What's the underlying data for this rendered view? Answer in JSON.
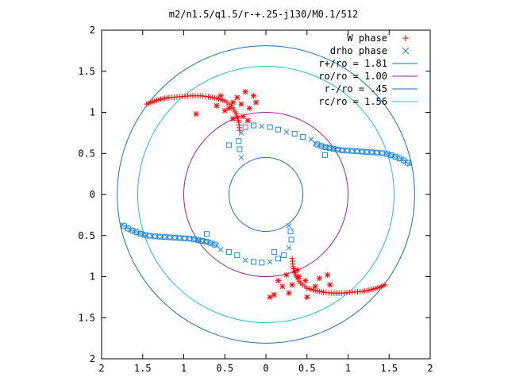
{
  "chart_data": {
    "type": "scatter",
    "title": "m2/n1.5/q1.5/r-+.25-j130/M0.1/512",
    "xlabel": "",
    "ylabel": "",
    "xlim": [
      -2,
      2
    ],
    "ylim": [
      -2,
      2
    ],
    "x_ticks": [
      "2",
      "1.5",
      "1",
      "0.5",
      "0",
      "0.5",
      "1",
      "1.5",
      "2"
    ],
    "y_ticks": [
      "2",
      "1.5",
      "1",
      "0.5",
      "0",
      "0.5",
      "1",
      "1.5",
      "2"
    ],
    "grid": false,
    "legend_position": "top-right",
    "circles": [
      {
        "label": "r+/ro = 1.81",
        "radius": 1.81,
        "color": "#1a6fb5"
      },
      {
        "label": "ro/ro = 1.00",
        "radius": 1.0,
        "color": "#a020a0"
      },
      {
        "label": "r-/ro = .45",
        "radius": 0.45,
        "color": "#1a6fb5"
      },
      {
        "label": "rc/ro = 1.56",
        "radius": 1.56,
        "color": "#20c0c0"
      }
    ],
    "series": [
      {
        "name": "W phase",
        "marker": "plus",
        "color": "#ff0000"
      },
      {
        "name": "drho phase",
        "marker": "cross",
        "color": "#1e88e5"
      }
    ],
    "w_phase_arms": [
      {
        "dense": [
          [
            -1.45,
            1.1
          ],
          [
            -1.38,
            1.13
          ],
          [
            -1.28,
            1.16
          ],
          [
            -1.18,
            1.18
          ],
          [
            -1.05,
            1.19
          ],
          [
            -0.92,
            1.2
          ],
          [
            -0.8,
            1.2
          ],
          [
            -0.7,
            1.19
          ],
          [
            -0.6,
            1.17
          ],
          [
            -0.5,
            1.14
          ],
          [
            -0.42,
            1.08
          ],
          [
            -0.36,
            0.98
          ],
          [
            -0.33,
            0.88
          ],
          [
            -0.32,
            0.78
          ]
        ],
        "scatter": [
          [
            -0.6,
            1.08
          ],
          [
            -0.5,
            1.02
          ],
          [
            -0.45,
            1.05
          ],
          [
            -0.4,
            1.12
          ],
          [
            -0.35,
            1.18
          ],
          [
            -0.25,
            1.25
          ],
          [
            -0.15,
            1.2
          ],
          [
            -0.12,
            1.12
          ],
          [
            -0.2,
            1.05
          ],
          [
            -0.28,
            0.95
          ],
          [
            -0.22,
            0.9
          ],
          [
            -0.4,
            0.92
          ],
          [
            -0.3,
            1.1
          ],
          [
            -0.55,
            1.2
          ],
          [
            -0.85,
            0.98
          ]
        ]
      },
      {
        "dense": [
          [
            1.45,
            -1.1
          ],
          [
            1.38,
            -1.13
          ],
          [
            1.28,
            -1.16
          ],
          [
            1.18,
            -1.18
          ],
          [
            1.05,
            -1.19
          ],
          [
            0.92,
            -1.2
          ],
          [
            0.8,
            -1.2
          ],
          [
            0.7,
            -1.19
          ],
          [
            0.6,
            -1.17
          ],
          [
            0.5,
            -1.14
          ],
          [
            0.42,
            -1.08
          ],
          [
            0.36,
            -0.98
          ],
          [
            0.33,
            -0.88
          ],
          [
            0.32,
            -0.78
          ]
        ],
        "scatter": [
          [
            0.75,
            -0.98
          ],
          [
            0.78,
            -1.1
          ],
          [
            0.6,
            -1.12
          ],
          [
            0.48,
            -1.05
          ],
          [
            0.4,
            -1.0
          ],
          [
            0.32,
            -1.1
          ],
          [
            0.2,
            -1.12
          ],
          [
            0.1,
            -1.22
          ],
          [
            0.05,
            -1.25
          ],
          [
            0.15,
            -1.05
          ],
          [
            0.28,
            -1.2
          ],
          [
            0.5,
            -1.25
          ],
          [
            0.65,
            -1.02
          ],
          [
            0.38,
            -0.92
          ],
          [
            0.25,
            -0.98
          ]
        ]
      }
    ],
    "drho_phase_arms": [
      {
        "dense": [
          [
            1.75,
            0.37
          ],
          [
            1.65,
            0.43
          ],
          [
            1.55,
            0.47
          ],
          [
            1.45,
            0.5
          ],
          [
            1.35,
            0.51
          ],
          [
            1.2,
            0.52
          ],
          [
            1.05,
            0.53
          ],
          [
            0.9,
            0.54
          ],
          [
            0.8,
            0.56
          ],
          [
            0.7,
            0.58
          ],
          [
            0.6,
            0.62
          ]
        ],
        "scatter": [
          [
            0.55,
            0.67
          ],
          [
            0.45,
            0.7
          ],
          [
            0.35,
            0.74
          ],
          [
            0.25,
            0.76
          ],
          [
            0.15,
            0.79
          ],
          [
            0.05,
            0.82
          ],
          [
            -0.05,
            0.83
          ],
          [
            -0.15,
            0.84
          ],
          [
            -0.25,
            0.82
          ],
          [
            -0.3,
            0.75
          ],
          [
            -0.33,
            0.65
          ],
          [
            -0.32,
            0.55
          ],
          [
            -0.3,
            0.45
          ],
          [
            -0.45,
            0.6
          ],
          [
            0.72,
            0.48
          ]
        ]
      },
      {
        "dense": [
          [
            -1.75,
            -0.37
          ],
          [
            -1.65,
            -0.43
          ],
          [
            -1.55,
            -0.47
          ],
          [
            -1.45,
            -0.5
          ],
          [
            -1.35,
            -0.51
          ],
          [
            -1.2,
            -0.52
          ],
          [
            -1.05,
            -0.53
          ],
          [
            -0.9,
            -0.54
          ],
          [
            -0.8,
            -0.56
          ],
          [
            -0.7,
            -0.58
          ],
          [
            -0.6,
            -0.62
          ]
        ],
        "scatter": [
          [
            -0.55,
            -0.67
          ],
          [
            -0.45,
            -0.7
          ],
          [
            -0.35,
            -0.74
          ],
          [
            -0.25,
            -0.8
          ],
          [
            -0.15,
            -0.82
          ],
          [
            -0.05,
            -0.83
          ],
          [
            0.05,
            -0.82
          ],
          [
            0.15,
            -0.78
          ],
          [
            0.22,
            -0.74
          ],
          [
            0.28,
            -0.65
          ],
          [
            0.31,
            -0.55
          ],
          [
            0.3,
            -0.45
          ],
          [
            0.28,
            -0.38
          ],
          [
            -0.72,
            -0.48
          ],
          [
            0.1,
            -0.7
          ]
        ]
      }
    ]
  }
}
